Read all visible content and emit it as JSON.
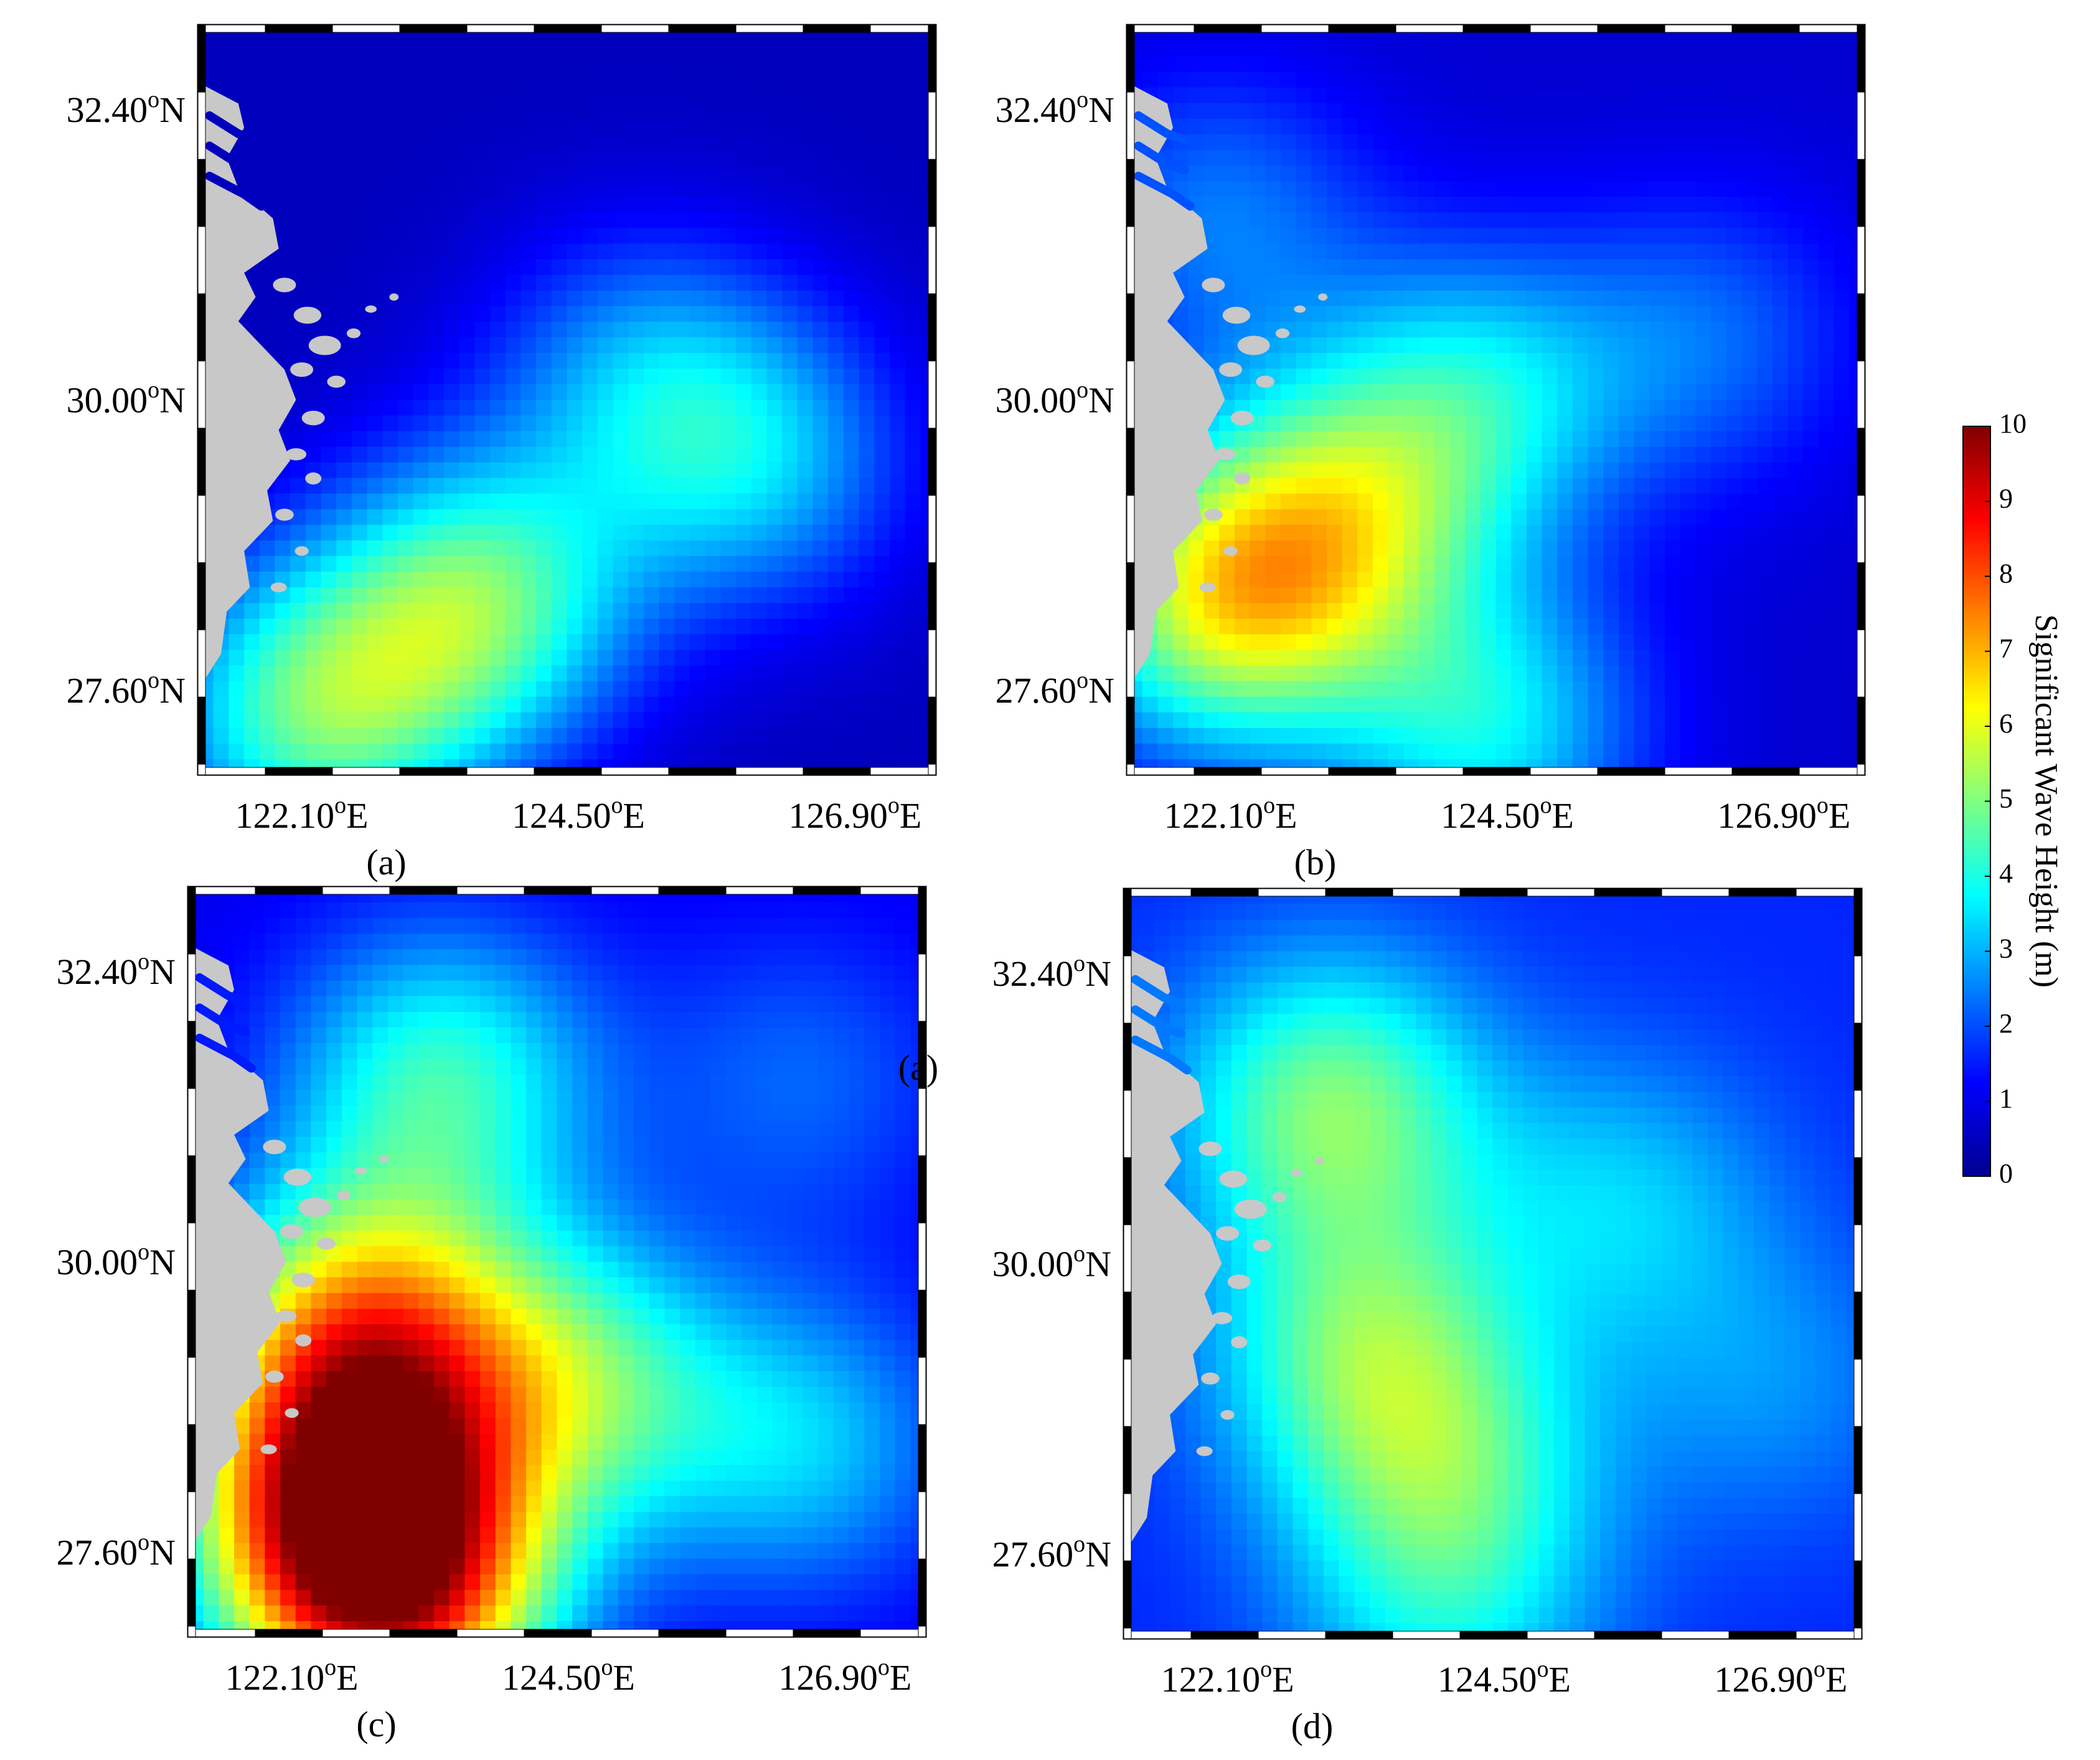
{
  "figure": {
    "panels": [
      {
        "label": "(a)"
      },
      {
        "label": "(b)"
      },
      {
        "label": "(c)",
        "stray_label": "(a)"
      },
      {
        "label": "(d)"
      }
    ],
    "colorbar": {
      "title": "Significant Wave Height (m)",
      "ticks": [
        "0",
        "1",
        "2",
        "3",
        "4",
        "5",
        "6",
        "7",
        "8",
        "9",
        "10"
      ],
      "colormap": [
        "#00008f",
        "#0000ff",
        "#0080ff",
        "#00ffff",
        "#80ff80",
        "#ffff00",
        "#ff8000",
        "#ff0000",
        "#800000"
      ]
    },
    "land_color": "#c8c8c8"
  },
  "chart_data": [
    {
      "type": "heatmap",
      "panel": "(a)",
      "x_ticks": [
        "122.10",
        "124.50",
        "126.90"
      ],
      "y_ticks": [
        "32.40",
        "30.00",
        "27.60"
      ],
      "x_unit": "E",
      "y_unit": "N",
      "degree_symbol": "o",
      "xlim": [
        121.2,
        127.6
      ],
      "ylim": [
        26.9,
        33.1
      ],
      "clim": [
        0,
        10
      ],
      "hotspots": [
        {
          "lon": 123.6,
          "lat": 28.3,
          "value": 4.6
        },
        {
          "lon": 122.2,
          "lat": 27.4,
          "value": 4.4
        },
        {
          "lon": 126.0,
          "lat": 29.5,
          "value": 3.0
        },
        {
          "lon": 125.0,
          "lat": 30.2,
          "value": 2.4
        }
      ],
      "background": 0.5
    },
    {
      "type": "heatmap",
      "panel": "(b)",
      "x_ticks": [
        "122.10",
        "124.50",
        "126.90"
      ],
      "y_ticks": [
        "32.40",
        "30.00",
        "27.60"
      ],
      "x_unit": "E",
      "y_unit": "N",
      "degree_symbol": "o",
      "xlim": [
        121.2,
        127.6
      ],
      "ylim": [
        26.9,
        33.1
      ],
      "clim": [
        0,
        10
      ],
      "hotspots": [
        {
          "lon": 122.0,
          "lat": 28.3,
          "value": 5.2
        },
        {
          "lon": 123.0,
          "lat": 29.0,
          "value": 4.2
        },
        {
          "lon": 124.3,
          "lat": 27.3,
          "value": 3.6
        },
        {
          "lon": 124.2,
          "lat": 30.0,
          "value": 3.4
        },
        {
          "lon": 126.2,
          "lat": 30.5,
          "value": 2.2
        },
        {
          "lon": 122.0,
          "lat": 31.5,
          "value": 2.4
        }
      ],
      "background": 0.7
    },
    {
      "type": "heatmap",
      "panel": "(c)",
      "x_ticks": [
        "122.10",
        "124.50",
        "126.90"
      ],
      "y_ticks": [
        "32.40",
        "30.00",
        "27.60"
      ],
      "x_unit": "E",
      "y_unit": "N",
      "degree_symbol": "o",
      "xlim": [
        121.2,
        127.6
      ],
      "ylim": [
        26.9,
        33.1
      ],
      "clim": [
        0,
        10
      ],
      "hotspots": [
        {
          "lon": 122.6,
          "lat": 28.0,
          "value": 7.6
        },
        {
          "lon": 122.7,
          "lat": 29.4,
          "value": 6.4
        },
        {
          "lon": 123.0,
          "lat": 27.2,
          "value": 6.6
        },
        {
          "lon": 123.4,
          "lat": 31.5,
          "value": 4.2
        },
        {
          "lon": 124.5,
          "lat": 29.0,
          "value": 4.4
        },
        {
          "lon": 126.5,
          "lat": 28.5,
          "value": 3.2
        },
        {
          "lon": 126.5,
          "lat": 31.5,
          "value": 2.2
        }
      ],
      "background": 1.0
    },
    {
      "type": "heatmap",
      "panel": "(d)",
      "x_ticks": [
        "122.10",
        "124.50",
        "126.90"
      ],
      "y_ticks": [
        "32.40",
        "30.00",
        "27.60"
      ],
      "x_unit": "E",
      "y_unit": "N",
      "degree_symbol": "o",
      "xlim": [
        121.2,
        127.6
      ],
      "ylim": [
        26.9,
        33.1
      ],
      "clim": [
        0,
        10
      ],
      "hotspots": [
        {
          "lon": 123.0,
          "lat": 31.3,
          "value": 4.9
        },
        {
          "lon": 123.3,
          "lat": 29.3,
          "value": 4.4
        },
        {
          "lon": 124.0,
          "lat": 28.2,
          "value": 3.8
        },
        {
          "lon": 125.5,
          "lat": 30.5,
          "value": 3.2
        },
        {
          "lon": 126.8,
          "lat": 29.0,
          "value": 2.6
        },
        {
          "lon": 124.0,
          "lat": 27.0,
          "value": 3.0
        }
      ],
      "background": 1.6
    }
  ]
}
